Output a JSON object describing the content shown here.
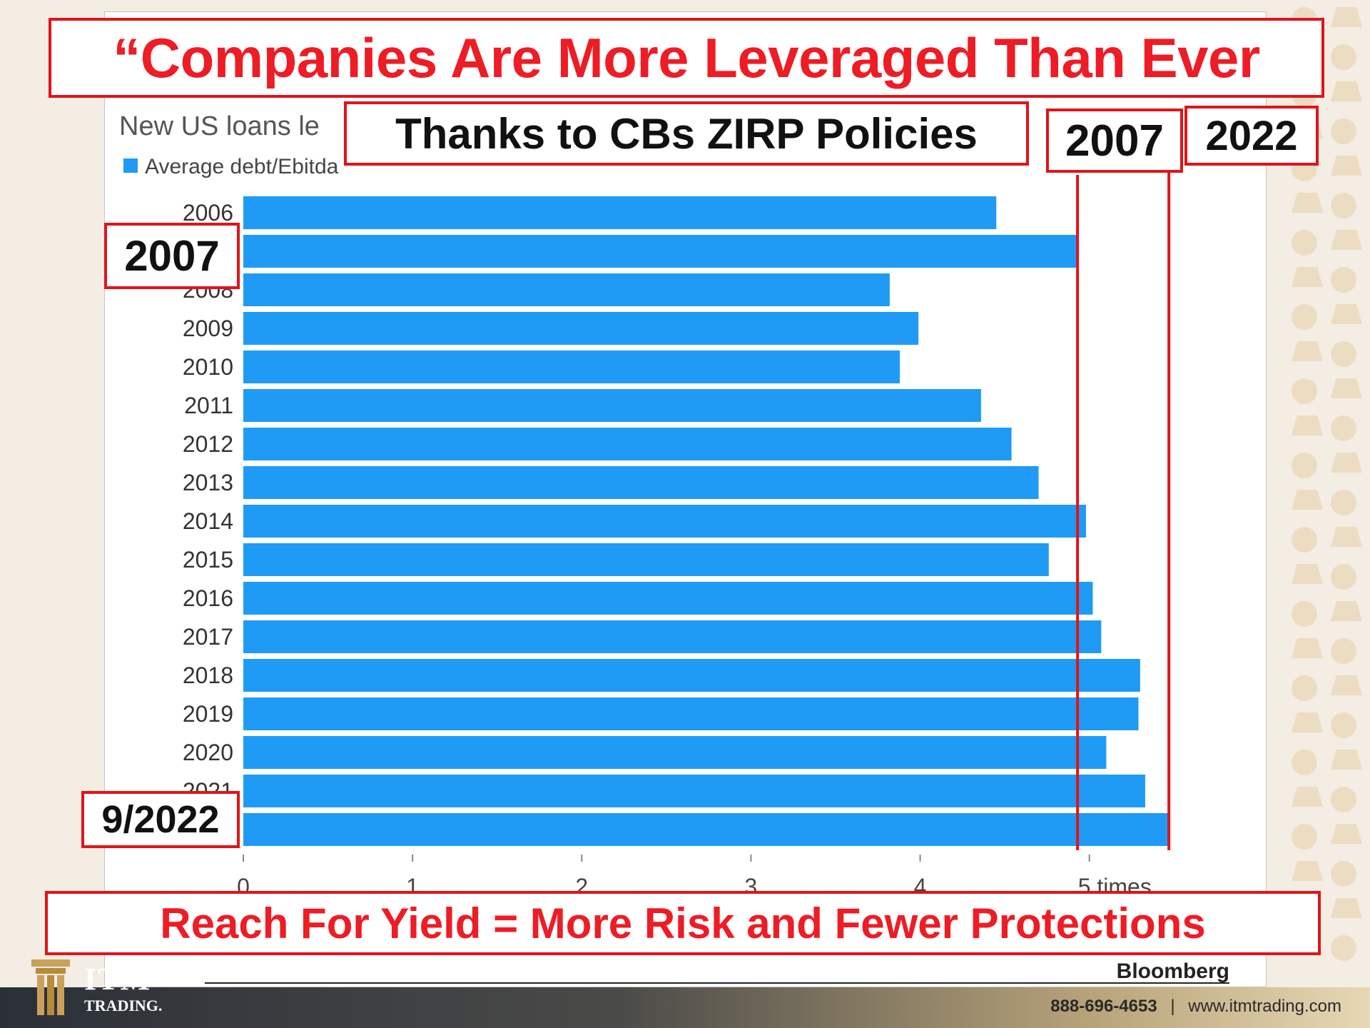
{
  "callouts": {
    "headline": "“Companies Are More Leveraged Than Ever",
    "subhead": "Thanks to CBs ZIRP Policies",
    "tag_2007_top": "2007",
    "tag_2022_top": "2022",
    "tag_2007_left": "2007",
    "tag_9_2022": "9/2022",
    "bottom": "Reach For Yield = More Risk and Fewer Protections"
  },
  "chart_header": {
    "subtitle": "New US loans le",
    "legend_label": "Average debt/Ebitda"
  },
  "chart_data": {
    "type": "bar",
    "orientation": "horizontal",
    "categories": [
      "2006",
      "2007",
      "2008",
      "2009",
      "2010",
      "2011",
      "2012",
      "2013",
      "2014",
      "2015",
      "2016",
      "2017",
      "2018",
      "2019",
      "2020",
      "2021",
      "9/2022"
    ],
    "series": [
      {
        "name": "Average debt/Ebitda",
        "values": [
          4.45,
          4.93,
          3.82,
          3.99,
          3.88,
          4.36,
          4.54,
          4.7,
          4.98,
          4.76,
          5.02,
          5.07,
          5.3,
          5.29,
          5.1,
          5.33,
          5.47
        ]
      }
    ],
    "xlim": [
      0,
      5.6
    ],
    "xticks": [
      "0",
      "1",
      "2",
      "3",
      "4",
      "5 times"
    ],
    "legend_position": "top-left",
    "source": "Bloomberg",
    "reference_lines": [
      {
        "label": "2007",
        "value": 4.93
      },
      {
        "label": "2022",
        "value": 5.47
      }
    ],
    "colors": {
      "bar": "#1f9bf5",
      "reference_line": "#e0141a"
    }
  },
  "footer": {
    "brand": "ITM",
    "brand_sub": "TRADING.",
    "phone": "888-696-4653",
    "separator": "|",
    "website": "www.itmtrading.com"
  }
}
